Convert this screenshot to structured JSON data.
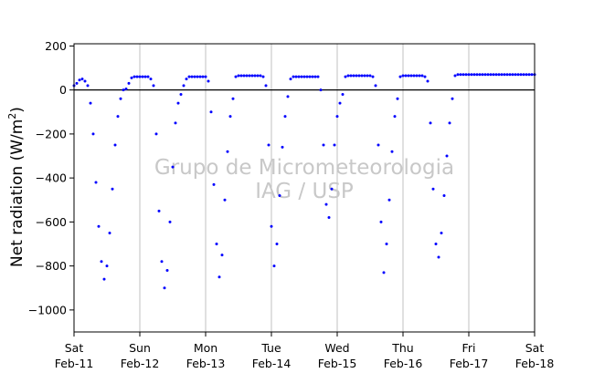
{
  "chart_data": {
    "type": "scatter",
    "title": "",
    "xlabel": "",
    "ylabel": "Net radiation (W/m²)",
    "ylabel_main": "Net radiation (W/m",
    "ylabel_sup": "2",
    "ylabel_end": ")",
    "watermark_line1": "Grupo de Micrometeorologia",
    "watermark_line2": "IAG / USP",
    "ylim": [
      -1100,
      210
    ],
    "xlim": [
      "2024-02-11 00:00",
      "2024-02-18 00:00"
    ],
    "yticks": [
      200,
      0,
      -200,
      -400,
      -600,
      -800,
      -1000
    ],
    "ytick_labels": [
      "200",
      "0",
      "−200",
      "−400",
      "−600",
      "−800",
      "−1000"
    ],
    "xtick_days": [
      "Sat",
      "Sun",
      "Mon",
      "Tue",
      "Wed",
      "Thu",
      "Fri",
      "Sat"
    ],
    "xtick_dates": [
      "Feb-11",
      "Feb-12",
      "Feb-13",
      "Feb-14",
      "Feb-15",
      "Feb-16",
      "Feb-17",
      "Feb-18"
    ],
    "vertical_grid": true,
    "horizontal_grid": false,
    "zero_line": true,
    "marker_color": "#0000ff",
    "series": [
      {
        "values_note": "",
        "x_unit": "hours from start of Feb-11",
        "x": [
          0,
          1,
          2,
          3,
          4,
          5,
          6,
          7,
          8,
          9,
          10,
          11,
          12,
          13,
          14,
          15,
          16,
          17,
          18,
          19,
          20,
          21,
          22,
          23,
          24,
          25,
          26,
          27,
          28,
          29,
          30,
          31,
          32,
          33,
          34,
          35,
          36,
          37,
          38,
          39,
          40,
          41,
          42,
          43,
          44,
          45,
          46,
          47,
          48,
          49,
          50,
          51,
          52,
          53,
          54,
          55,
          56,
          57,
          58,
          59,
          60,
          61,
          62,
          63,
          64,
          65,
          66,
          67,
          68,
          69,
          70,
          71,
          72,
          73,
          74,
          75,
          76,
          77,
          78,
          79,
          80,
          81,
          82,
          83,
          84,
          85,
          86,
          87,
          88,
          89,
          90,
          91,
          92,
          93,
          94,
          95,
          96,
          97,
          98,
          99,
          100,
          101,
          102,
          103,
          104,
          105,
          106,
          107,
          108,
          109,
          110,
          111,
          112,
          113,
          114,
          115,
          116,
          117,
          118,
          119,
          120,
          121,
          122,
          123,
          124,
          125,
          126,
          127,
          128,
          129,
          130,
          131,
          132,
          133,
          134,
          135,
          136,
          137,
          138,
          139,
          140,
          141,
          142,
          143,
          144,
          145,
          146,
          147,
          148,
          149,
          150,
          151,
          152,
          153,
          154,
          155,
          156,
          157,
          158,
          159,
          160,
          161,
          162,
          163,
          164,
          165,
          166,
          167,
          168
        ],
        "y": [
          20,
          30,
          45,
          50,
          40,
          20,
          -60,
          -200,
          -420,
          -620,
          -780,
          -860,
          -800,
          -650,
          -450,
          -250,
          -120,
          -40,
          0,
          5,
          30,
          55,
          60,
          60,
          60,
          60,
          60,
          60,
          50,
          20,
          -200,
          -550,
          -780,
          -900,
          -820,
          -600,
          -350,
          -150,
          -60,
          -20,
          20,
          50,
          60,
          60,
          60,
          60,
          60,
          60,
          60,
          40,
          -100,
          -430,
          -700,
          -850,
          -750,
          -500,
          -280,
          -120,
          -40,
          60,
          65,
          65,
          65,
          65,
          65,
          65,
          65,
          65,
          65,
          60,
          20,
          -250,
          -620,
          -800,
          -700,
          -480,
          -260,
          -120,
          -30,
          50,
          60,
          60,
          60,
          60,
          60,
          60,
          60,
          60,
          60,
          60,
          0,
          -250,
          -520,
          -580,
          -450,
          -250,
          -120,
          -60,
          -20,
          60,
          65,
          65,
          65,
          65,
          65,
          65,
          65,
          65,
          65,
          60,
          20,
          -250,
          -600,
          -830,
          -700,
          -500,
          -280,
          -120,
          -40,
          60,
          65,
          65,
          65,
          65,
          65,
          65,
          65,
          65,
          60,
          40,
          -150,
          -450,
          -700,
          -760,
          -650,
          -480,
          -300,
          -150,
          -40,
          65,
          70,
          70,
          70,
          70,
          70,
          70,
          70,
          70,
          70,
          70,
          70,
          70,
          70,
          70,
          70,
          70,
          70,
          70,
          70,
          70,
          70,
          70,
          70,
          70,
          70,
          70,
          70,
          70,
          70
        ]
      }
    ]
  }
}
